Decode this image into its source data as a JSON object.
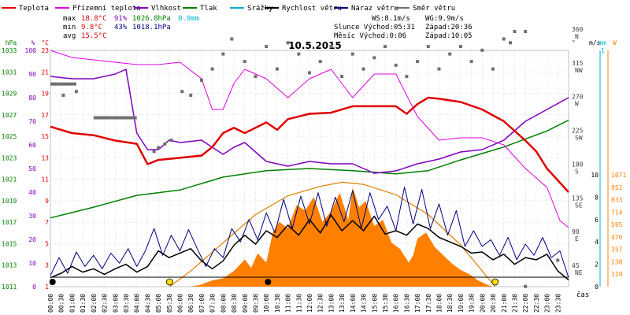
{
  "colors": {
    "temp": "#e00000",
    "dew": "#e000e0",
    "hum": "#8000c0",
    "press": "#008000",
    "rain": "#00b0d0",
    "wind": "#000000",
    "gust": "#000080",
    "dir": "#707070",
    "solar": "#ff8000",
    "sun_curve": "#e08000",
    "grid": "#c0c0c0"
  },
  "legend": [
    {
      "label": "Teplota",
      "color": "#e00000"
    },
    {
      "label": "Přízemní teplota",
      "color": "#e000e0"
    },
    {
      "label": "Vlhkost",
      "color": "#8000c0"
    },
    {
      "label": "Tlak",
      "color": "#008000"
    },
    {
      "label": "Srážky",
      "color": "#00b0d0"
    },
    {
      "label": "Rychlost větru",
      "color": "#000000"
    },
    {
      "label": "Náraz větru",
      "color": "#000080"
    },
    {
      "label": "Směr větru",
      "color": "#707070"
    }
  ],
  "stats": {
    "max": {
      "label": "max",
      "temp": "18.8°C",
      "hum": "91%",
      "press": "1026.8hPa",
      "rain": "0.0mm"
    },
    "min": {
      "label": "min",
      "temp": "9.8°C",
      "hum": "43%",
      "press": "1018.1hPa"
    },
    "avg": {
      "label": "avg",
      "temp": "15.5°C"
    }
  },
  "wind_info": {
    "ws": "WS:8.1m/s",
    "wg": "WG:9.9m/s"
  },
  "sun": {
    "rise": "Slunce Východ:05:31",
    "set": "Západ:20:36"
  },
  "moon": {
    "rise": "Měsíc  Východ:0:06",
    "set": "Západ:10:05"
  },
  "chart_data": {
    "type": "line",
    "title": "10.5.2015",
    "x_ticks": [
      "00:00",
      "00:30",
      "01:00",
      "01:30",
      "02:00",
      "02:30",
      "03:00",
      "03:30",
      "04:00",
      "04:30",
      "05:00",
      "05:30",
      "06:00",
      "06:30",
      "07:00",
      "07:30",
      "08:00",
      "08:30",
      "09:00",
      "09:30",
      "10:00",
      "10:30",
      "11:00",
      "11:30",
      "12:00",
      "12:30",
      "13:00",
      "13:30",
      "14:00",
      "14:30",
      "15:00",
      "15:30",
      "16:00",
      "16:30",
      "17:00",
      "17:30",
      "18:00",
      "18:30",
      "19:00",
      "19:30",
      "20:00",
      "20:30",
      "21:00",
      "21:30",
      "22:00",
      "22:30",
      "23:00",
      "23:30"
    ],
    "x_label": "čas",
    "axes": {
      "hpa": {
        "unit": "hPa",
        "ticks": [
          "1033",
          "1031",
          "1029",
          "1027",
          "1025",
          "1023",
          "1021",
          "1019",
          "1017",
          "1015",
          "1013",
          "1011"
        ]
      },
      "pct": {
        "unit": "%",
        "ticks": [
          "100",
          "90",
          "80",
          "70",
          "60",
          "50",
          "40",
          "30",
          "20",
          "10",
          "0"
        ]
      },
      "temp": {
        "unit": "°C",
        "ticks": [
          "23",
          "21",
          "19",
          "17",
          "15",
          "13",
          "11",
          "9",
          "7",
          "5",
          "3",
          "1"
        ]
      },
      "dir": {
        "unit": "°",
        "ticks": [
          {
            "v": "360",
            "d": "N"
          },
          {
            "v": "315",
            "d": "NW"
          },
          {
            "v": "270",
            "d": "W"
          },
          {
            "v": "225",
            "d": "SW"
          },
          {
            "v": "180",
            "d": "S"
          },
          {
            "v": "135",
            "d": "SE"
          },
          {
            "v": "90",
            "d": "E"
          },
          {
            "v": "45",
            "d": "NE"
          }
        ]
      },
      "ms": {
        "unit": "m/s",
        "ticks": [
          "10",
          "8",
          "6",
          "4",
          "2",
          "0"
        ]
      },
      "mm": {
        "unit": "mm",
        "ticks": [
          "1"
        ]
      },
      "w": {
        "unit": "W",
        "ticks": [
          "1071",
          "952",
          "833",
          "714",
          "595",
          "476",
          "357",
          "238",
          "119"
        ]
      }
    },
    "series": {
      "temp": [
        [
          0,
          15.9
        ],
        [
          1,
          15.3
        ],
        [
          2,
          15.1
        ],
        [
          3,
          14.6
        ],
        [
          4,
          14.3
        ],
        [
          4.5,
          12.4
        ],
        [
          5,
          12.8
        ],
        [
          6,
          13.0
        ],
        [
          7,
          13.2
        ],
        [
          7.5,
          14.0
        ],
        [
          8,
          15.3
        ],
        [
          8.5,
          15.8
        ],
        [
          9,
          15.3
        ],
        [
          9.5,
          15.8
        ],
        [
          10,
          16.3
        ],
        [
          10.5,
          15.6
        ],
        [
          11,
          16.6
        ],
        [
          12,
          17.1
        ],
        [
          13,
          17.2
        ],
        [
          14,
          17.8
        ],
        [
          15,
          17.8
        ],
        [
          16,
          17.8
        ],
        [
          16.5,
          17.1
        ],
        [
          17,
          18.0
        ],
        [
          17.5,
          18.6
        ],
        [
          18,
          18.5
        ],
        [
          19,
          18.2
        ],
        [
          20,
          17.5
        ],
        [
          21,
          16.4
        ],
        [
          22,
          14.6
        ],
        [
          22.5,
          13.6
        ],
        [
          23,
          12.0
        ],
        [
          24,
          9.8
        ]
      ],
      "dew": [
        [
          0,
          100
        ],
        [
          1,
          97
        ],
        [
          2,
          96
        ],
        [
          3,
          95
        ],
        [
          4,
          94
        ],
        [
          5,
          94
        ],
        [
          6,
          95
        ],
        [
          7,
          88
        ],
        [
          7.5,
          75
        ],
        [
          8,
          75
        ],
        [
          8.5,
          86
        ],
        [
          9,
          92
        ],
        [
          10,
          88
        ],
        [
          11,
          80
        ],
        [
          12,
          88
        ],
        [
          13,
          92
        ],
        [
          14,
          80
        ],
        [
          15,
          90
        ],
        [
          16,
          90
        ],
        [
          17,
          72
        ],
        [
          18,
          62
        ],
        [
          19,
          63
        ],
        [
          20,
          63
        ],
        [
          21,
          60
        ],
        [
          22,
          50
        ],
        [
          23,
          42
        ],
        [
          23.6,
          28
        ],
        [
          24,
          25
        ]
      ],
      "press": [
        [
          0,
          1017.4
        ],
        [
          2,
          1018.4
        ],
        [
          4,
          1019.5
        ],
        [
          6,
          1020.0
        ],
        [
          8,
          1021.2
        ],
        [
          10,
          1021.8
        ],
        [
          12,
          1022.0
        ],
        [
          14,
          1021.8
        ],
        [
          16,
          1021.5
        ],
        [
          17.5,
          1021.8
        ],
        [
          19,
          1022.8
        ],
        [
          21,
          1024.0
        ],
        [
          23,
          1025.5
        ],
        [
          24,
          1026.5
        ]
      ],
      "hum": [
        [
          0,
          89
        ],
        [
          1,
          88
        ],
        [
          2,
          88
        ],
        [
          3,
          90
        ],
        [
          3.5,
          92
        ],
        [
          4,
          65
        ],
        [
          4.5,
          58
        ],
        [
          5,
          58
        ],
        [
          5.5,
          62
        ],
        [
          6,
          61
        ],
        [
          7,
          62
        ],
        [
          7.5,
          59
        ],
        [
          8,
          56
        ],
        [
          8.5,
          59
        ],
        [
          9,
          61
        ],
        [
          10,
          53
        ],
        [
          11,
          51
        ],
        [
          12,
          53
        ],
        [
          13,
          52
        ],
        [
          14,
          52
        ],
        [
          15,
          48
        ],
        [
          16,
          49
        ],
        [
          17,
          52
        ],
        [
          18,
          54
        ],
        [
          19,
          57
        ],
        [
          20,
          58
        ],
        [
          21,
          62
        ],
        [
          22,
          70
        ],
        [
          23,
          75
        ],
        [
          24,
          80
        ]
      ],
      "dir_dots": [
        [
          0.2,
          290
        ],
        [
          0.6,
          275
        ],
        [
          1.2,
          280
        ],
        [
          4.8,
          200
        ],
        [
          5,
          205
        ],
        [
          5.3,
          210
        ],
        [
          5.6,
          215
        ],
        [
          6.1,
          280
        ],
        [
          6.5,
          275
        ],
        [
          7,
          295
        ],
        [
          7.5,
          310
        ],
        [
          8,
          330
        ],
        [
          8.4,
          350
        ],
        [
          9,
          320
        ],
        [
          9.5,
          300
        ],
        [
          10,
          340
        ],
        [
          10.5,
          310
        ],
        [
          11,
          345
        ],
        [
          11.5,
          330
        ],
        [
          12,
          305
        ],
        [
          12.5,
          320
        ],
        [
          13,
          340
        ],
        [
          13.5,
          300
        ],
        [
          14,
          330
        ],
        [
          14.5,
          310
        ],
        [
          15,
          325
        ],
        [
          15.5,
          340
        ],
        [
          16,
          315
        ],
        [
          16.5,
          300
        ],
        [
          17,
          320
        ],
        [
          17.5,
          340
        ],
        [
          18,
          310
        ],
        [
          18.5,
          330
        ],
        [
          19,
          340
        ],
        [
          19.5,
          320
        ],
        [
          20,
          335
        ],
        [
          20.5,
          310
        ],
        [
          21,
          350
        ],
        [
          21.5,
          360
        ],
        [
          22,
          360
        ],
        [
          21.3,
          345
        ],
        [
          2.2,
          245
        ],
        [
          3,
          245
        ],
        [
          22,
          20
        ],
        [
          23.5,
          55
        ]
      ],
      "dir_bars": [
        [
          0,
          1.2,
          290
        ],
        [
          2,
          4,
          245
        ]
      ],
      "wind": [
        [
          0,
          0.8
        ],
        [
          0.5,
          1.2
        ],
        [
          1,
          1.8
        ],
        [
          1.5,
          1.3
        ],
        [
          2,
          1.6
        ],
        [
          2.5,
          1.1
        ],
        [
          3,
          1.6
        ],
        [
          3.5,
          2.0
        ],
        [
          4,
          1.3
        ],
        [
          4.5,
          1.8
        ],
        [
          5,
          3.2
        ],
        [
          5.5,
          2.6
        ],
        [
          6,
          3.0
        ],
        [
          6.5,
          3.4
        ],
        [
          7,
          2.3
        ],
        [
          7.5,
          1.6
        ],
        [
          8,
          2.3
        ],
        [
          8.5,
          3.7
        ],
        [
          9,
          4.6
        ],
        [
          9.5,
          3.8
        ],
        [
          10,
          5.0
        ],
        [
          10.5,
          4.4
        ],
        [
          11,
          5.5
        ],
        [
          11.5,
          4.6
        ],
        [
          12,
          6.0
        ],
        [
          12.5,
          4.8
        ],
        [
          13,
          6.4
        ],
        [
          13.5,
          5.0
        ],
        [
          14,
          5.9
        ],
        [
          14.5,
          5.0
        ],
        [
          15,
          6.3
        ],
        [
          15.5,
          4.7
        ],
        [
          16,
          5.0
        ],
        [
          16.5,
          4.6
        ],
        [
          17,
          5.6
        ],
        [
          17.5,
          5.2
        ],
        [
          18,
          4.4
        ],
        [
          18.5,
          4.0
        ],
        [
          19,
          3.6
        ],
        [
          19.5,
          3.0
        ],
        [
          20,
          3.1
        ],
        [
          20.5,
          2.4
        ],
        [
          21,
          2.9
        ],
        [
          21.5,
          2.0
        ],
        [
          22,
          2.6
        ],
        [
          22.5,
          2.4
        ],
        [
          23,
          2.9
        ],
        [
          23.5,
          1.4
        ],
        [
          24,
          0.6
        ]
      ],
      "gust": [
        [
          0,
          1.0
        ],
        [
          0.4,
          2.6
        ],
        [
          0.8,
          1.2
        ],
        [
          1.2,
          3.1
        ],
        [
          1.6,
          1.8
        ],
        [
          2,
          2.8
        ],
        [
          2.4,
          1.6
        ],
        [
          2.8,
          3.0
        ],
        [
          3.2,
          2.1
        ],
        [
          3.6,
          3.4
        ],
        [
          4,
          1.8
        ],
        [
          4.4,
          3.2
        ],
        [
          4.8,
          5.2
        ],
        [
          5.2,
          2.8
        ],
        [
          5.6,
          4.6
        ],
        [
          6,
          3.2
        ],
        [
          6.4,
          5.1
        ],
        [
          6.8,
          3.4
        ],
        [
          7.2,
          1.8
        ],
        [
          7.6,
          3.4
        ],
        [
          8,
          2.6
        ],
        [
          8.4,
          5.2
        ],
        [
          8.8,
          4.0
        ],
        [
          9.2,
          6.0
        ],
        [
          9.6,
          4.2
        ],
        [
          10,
          6.6
        ],
        [
          10.4,
          4.8
        ],
        [
          10.8,
          7.8
        ],
        [
          11.2,
          5.2
        ],
        [
          11.6,
          8.1
        ],
        [
          12,
          5.6
        ],
        [
          12.4,
          8.4
        ],
        [
          12.8,
          5.4
        ],
        [
          13.2,
          8.0
        ],
        [
          13.6,
          5.8
        ],
        [
          14,
          8.6
        ],
        [
          14.4,
          5.2
        ],
        [
          14.8,
          8.4
        ],
        [
          15.2,
          6.0
        ],
        [
          15.6,
          7.2
        ],
        [
          16,
          5.0
        ],
        [
          16.4,
          8.9
        ],
        [
          16.8,
          5.6
        ],
        [
          17.2,
          8.7
        ],
        [
          17.6,
          5.2
        ],
        [
          18,
          7.4
        ],
        [
          18.4,
          4.6
        ],
        [
          18.8,
          6.8
        ],
        [
          19.2,
          3.6
        ],
        [
          19.6,
          5.0
        ],
        [
          20,
          3.6
        ],
        [
          20.4,
          4.2
        ],
        [
          20.8,
          2.8
        ],
        [
          21.2,
          4.4
        ],
        [
          21.6,
          2.4
        ],
        [
          22,
          3.8
        ],
        [
          22.4,
          2.8
        ],
        [
          22.8,
          4.4
        ],
        [
          23.2,
          2.6
        ],
        [
          23.6,
          3.2
        ],
        [
          24,
          0.8
        ]
      ],
      "solar": [
        [
          6.5,
          0
        ],
        [
          7.0,
          20
        ],
        [
          7.5,
          60
        ],
        [
          8,
          80
        ],
        [
          8.5,
          150
        ],
        [
          9,
          260
        ],
        [
          9.3,
          180
        ],
        [
          9.6,
          320
        ],
        [
          10,
          230
        ],
        [
          10.3,
          520
        ],
        [
          10.6,
          620
        ],
        [
          11,
          560
        ],
        [
          11.4,
          780
        ],
        [
          11.8,
          730
        ],
        [
          12.2,
          860
        ],
        [
          12.6,
          620
        ],
        [
          13,
          720
        ],
        [
          13.4,
          900
        ],
        [
          13.8,
          640
        ],
        [
          14,
          950
        ],
        [
          14.3,
          760
        ],
        [
          14.6,
          820
        ],
        [
          15,
          580
        ],
        [
          15.4,
          640
        ],
        [
          15.8,
          420
        ],
        [
          16.2,
          360
        ],
        [
          16.6,
          230
        ],
        [
          16.8,
          300
        ],
        [
          17,
          460
        ],
        [
          17.4,
          520
        ],
        [
          17.8,
          380
        ],
        [
          18.2,
          300
        ],
        [
          18.6,
          220
        ],
        [
          19,
          160
        ],
        [
          19.4,
          120
        ],
        [
          19.8,
          60
        ],
        [
          20.2,
          20
        ],
        [
          20.5,
          0
        ]
      ],
      "sun_curve": [
        [
          5.52,
          0
        ],
        [
          6.5,
          150
        ],
        [
          8,
          420
        ],
        [
          9.5,
          690
        ],
        [
          11,
          870
        ],
        [
          12.5,
          960
        ],
        [
          13.5,
          1000
        ],
        [
          14.5,
          980
        ],
        [
          16,
          880
        ],
        [
          17.5,
          690
        ],
        [
          19,
          400
        ],
        [
          20.6,
          0
        ]
      ]
    }
  }
}
